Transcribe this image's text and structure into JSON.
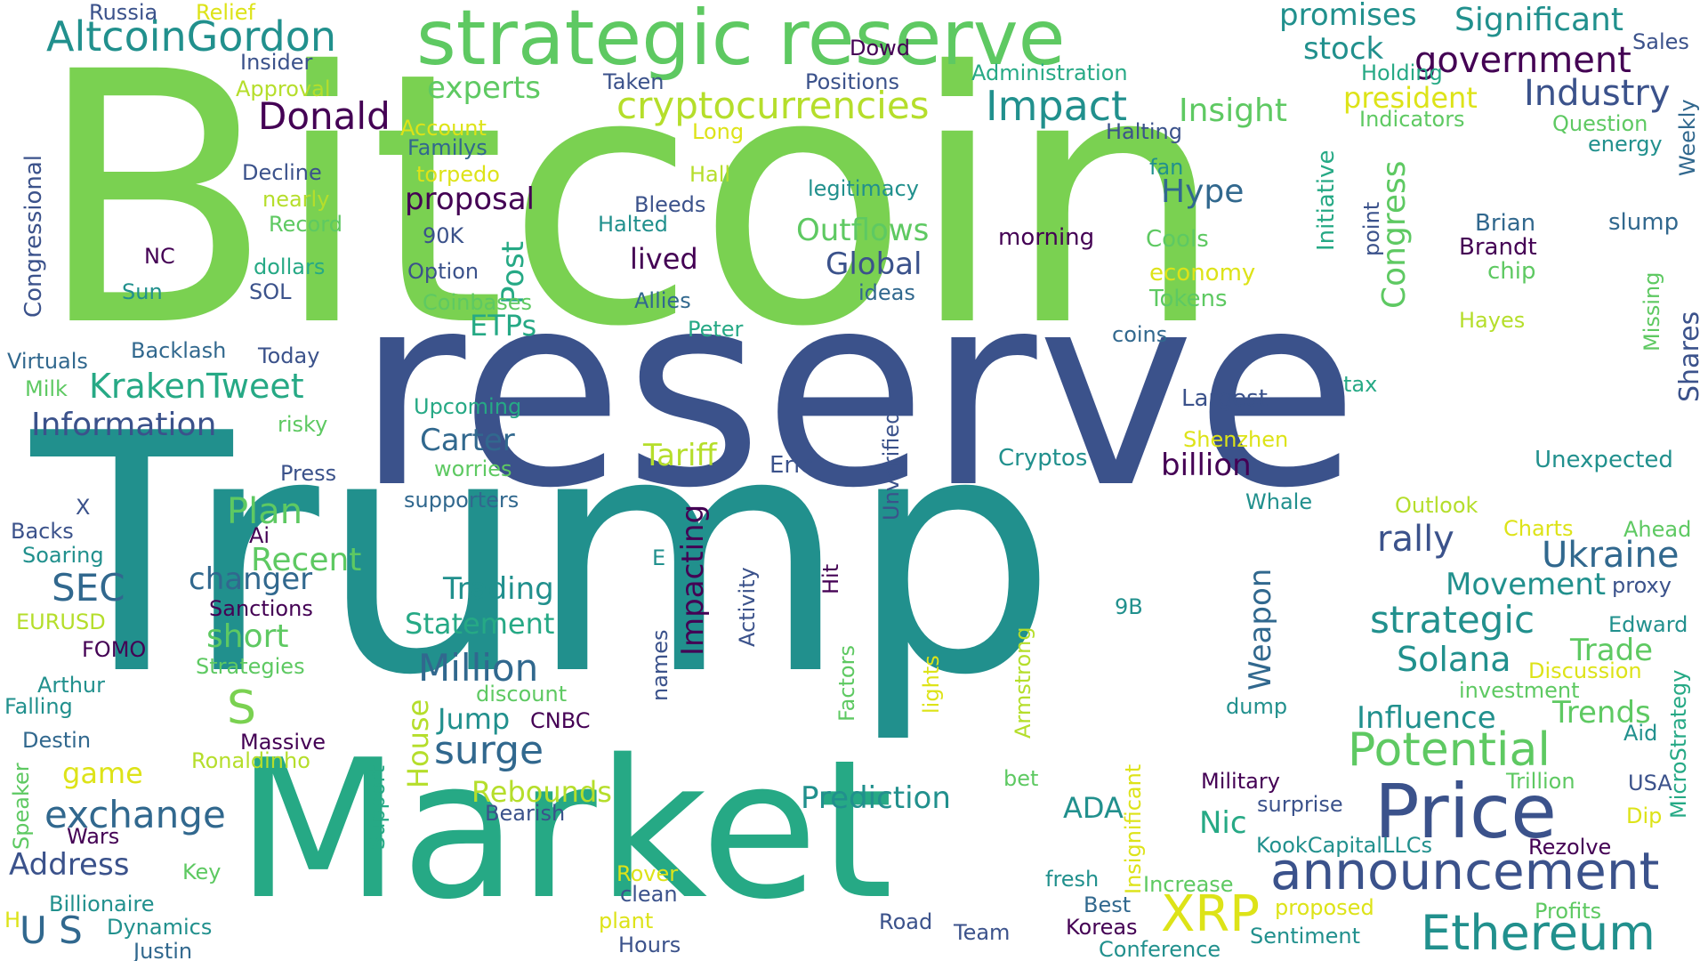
{
  "palette": {
    "dark_purple": "#440154",
    "indigo": "#3b528b",
    "teal_blue": "#31688e",
    "teal": "#21908d",
    "green_teal": "#26a985",
    "green": "#5ec962",
    "bright_green": "#7ad151",
    "yellow_green": "#b5de2b",
    "yellow": "#dde318"
  },
  "words": [
    {
      "text": "Bitcoin",
      "color": "#7ad151"
    },
    {
      "text": "reserve",
      "color": "#3b528b"
    },
    {
      "text": "Trump",
      "color": "#21908d"
    },
    {
      "text": "Market",
      "color": "#26a985"
    },
    {
      "text": "strategic reserve",
      "color": "#5ec962"
    },
    {
      "text": "Price",
      "color": "#3b528b"
    },
    {
      "text": "announcement",
      "color": "#3b528b"
    },
    {
      "text": "Ethereum",
      "color": "#21908d"
    },
    {
      "text": "Potential",
      "color": "#5ec962"
    },
    {
      "text": "XRP",
      "color": "#dde318"
    },
    {
      "text": "AltcoinGordon",
      "color": "#21908d"
    },
    {
      "text": "cryptocurrencies",
      "color": "#b5de2b"
    },
    {
      "text": "Impact",
      "color": "#21908d"
    },
    {
      "text": "Donald",
      "color": "#440154"
    },
    {
      "text": "government",
      "color": "#440154"
    },
    {
      "text": "Industry",
      "color": "#3b528b"
    },
    {
      "text": "Significant",
      "color": "#21908d"
    },
    {
      "text": "promises",
      "color": "#21908d"
    },
    {
      "text": "stock",
      "color": "#21908d"
    },
    {
      "text": "president",
      "color": "#dde318"
    },
    {
      "text": "experts",
      "color": "#5ec962"
    },
    {
      "text": "Insight",
      "color": "#5ec962"
    },
    {
      "text": "Ukraine",
      "color": "#31688e"
    },
    {
      "text": "strategic",
      "color": "#21908d"
    },
    {
      "text": "Solana",
      "color": "#21908d"
    },
    {
      "text": "Movement",
      "color": "#21908d"
    },
    {
      "text": "rally",
      "color": "#3b528b"
    },
    {
      "text": "Influence",
      "color": "#21908d"
    },
    {
      "text": "Trends",
      "color": "#5ec962"
    },
    {
      "text": "Trade",
      "color": "#5ec962"
    },
    {
      "text": "Plan",
      "color": "#5ec962"
    },
    {
      "text": "surge",
      "color": "#31688e"
    },
    {
      "text": "Million",
      "color": "#31688e"
    },
    {
      "text": "exchange",
      "color": "#31688e"
    },
    {
      "text": "KrakenTweet",
      "color": "#26a985"
    },
    {
      "text": "Information",
      "color": "#3b528b"
    },
    {
      "text": "SEC",
      "color": "#31688e"
    },
    {
      "text": "Recent",
      "color": "#5ec962"
    },
    {
      "text": "changer",
      "color": "#31688e"
    },
    {
      "text": "short",
      "color": "#5ec962"
    },
    {
      "text": "proposal",
      "color": "#440154"
    },
    {
      "text": "Outflows",
      "color": "#5ec962"
    },
    {
      "text": "Global",
      "color": "#3b528b"
    },
    {
      "text": "Hype",
      "color": "#31688e"
    },
    {
      "text": "billion",
      "color": "#440154"
    },
    {
      "text": "Tariff",
      "color": "#b5de2b"
    },
    {
      "text": "Carter",
      "color": "#31688e"
    },
    {
      "text": "Trading",
      "color": "#21908d"
    },
    {
      "text": "Statement",
      "color": "#26a985"
    },
    {
      "text": "Prediction",
      "color": "#21908d"
    },
    {
      "text": "Rebounds",
      "color": "#b5de2b"
    },
    {
      "text": "Jump",
      "color": "#21908d"
    },
    {
      "text": "lived",
      "color": "#440154"
    },
    {
      "text": "ETPs",
      "color": "#26a985"
    },
    {
      "text": "Post",
      "color": "#26a985"
    },
    {
      "text": "Congress",
      "color": "#5ec962"
    },
    {
      "text": "Weapon",
      "color": "#31688e"
    },
    {
      "text": "Impacting",
      "color": "#440154"
    },
    {
      "text": "House",
      "color": "#b5de2b"
    },
    {
      "text": "ADA",
      "color": "#21908d"
    },
    {
      "text": "Nic",
      "color": "#26a985"
    },
    {
      "text": "Address",
      "color": "#3b528b"
    },
    {
      "text": "game",
      "color": "#dde318"
    },
    {
      "text": "U S",
      "color": "#31688e"
    },
    {
      "text": "S",
      "color": "#7ad151"
    },
    {
      "text": "Shares",
      "color": "#3b528b"
    },
    {
      "text": "Russia",
      "color": "#3b528b"
    },
    {
      "text": "Relief",
      "color": "#dde318"
    },
    {
      "text": "Insider",
      "color": "#3b528b"
    },
    {
      "text": "Approval",
      "color": "#b5de2b"
    },
    {
      "text": "Account",
      "color": "#dde318"
    },
    {
      "text": "Dowd",
      "color": "#440154"
    },
    {
      "text": "Taken",
      "color": "#3b528b"
    },
    {
      "text": "Positions",
      "color": "#3b528b"
    },
    {
      "text": "Administration",
      "color": "#26a985"
    },
    {
      "text": "Holding",
      "color": "#26a985"
    },
    {
      "text": "Sales",
      "color": "#3b528b"
    },
    {
      "text": "Question",
      "color": "#5ec962"
    },
    {
      "text": "Indicators",
      "color": "#5ec962"
    },
    {
      "text": "energy",
      "color": "#21908d"
    },
    {
      "text": "Weekly",
      "color": "#31688e"
    },
    {
      "text": "Halting",
      "color": "#3b528b"
    },
    {
      "text": "Familys",
      "color": "#31688e"
    },
    {
      "text": "Long",
      "color": "#dde318"
    },
    {
      "text": "Decline",
      "color": "#3b528b"
    },
    {
      "text": "torpedo",
      "color": "#dde318"
    },
    {
      "text": "Hall",
      "color": "#b5de2b"
    },
    {
      "text": "legitimacy",
      "color": "#21908d"
    },
    {
      "text": "fan",
      "color": "#21908d"
    },
    {
      "text": "Initiative",
      "color": "#26a985"
    },
    {
      "text": "point",
      "color": "#3b528b"
    },
    {
      "text": "Congressional",
      "color": "#3b528b"
    },
    {
      "text": "nearly",
      "color": "#b5de2b"
    },
    {
      "text": "Record",
      "color": "#5ec962"
    },
    {
      "text": "Bleeds",
      "color": "#3b528b"
    },
    {
      "text": "Halted",
      "color": "#21908d"
    },
    {
      "text": "morning",
      "color": "#440154"
    },
    {
      "text": "Cools",
      "color": "#5ec962"
    },
    {
      "text": "economy",
      "color": "#dde318"
    },
    {
      "text": "Tokens",
      "color": "#5ec962"
    },
    {
      "text": "Brian",
      "color": "#31688e"
    },
    {
      "text": "Brandt",
      "color": "#440154"
    },
    {
      "text": "chip",
      "color": "#5ec962"
    },
    {
      "text": "slump",
      "color": "#31688e"
    },
    {
      "text": "Missing",
      "color": "#5ec962"
    },
    {
      "text": "Hayes",
      "color": "#b5de2b"
    },
    {
      "text": "NC",
      "color": "#440154"
    },
    {
      "text": "90K",
      "color": "#3b528b"
    },
    {
      "text": "dollars",
      "color": "#26a985"
    },
    {
      "text": "Option",
      "color": "#3b528b"
    },
    {
      "text": "Sun",
      "color": "#21908d"
    },
    {
      "text": "SOL",
      "color": "#3b528b"
    },
    {
      "text": "Coinbases",
      "color": "#5ec962"
    },
    {
      "text": "Allies",
      "color": "#31688e"
    },
    {
      "text": "ideas",
      "color": "#31688e"
    },
    {
      "text": "Peter",
      "color": "#26a985"
    },
    {
      "text": "coins",
      "color": "#31688e"
    },
    {
      "text": "Virtuals",
      "color": "#31688e"
    },
    {
      "text": "Backlash",
      "color": "#31688e"
    },
    {
      "text": "Today",
      "color": "#3b528b"
    },
    {
      "text": "Milk",
      "color": "#5ec962"
    },
    {
      "text": "risky",
      "color": "#5ec962"
    },
    {
      "text": "Upcoming",
      "color": "#26a985"
    },
    {
      "text": "Largest",
      "color": "#3b528b"
    },
    {
      "text": "tax",
      "color": "#26a985"
    },
    {
      "text": "Shenzhen",
      "color": "#dde318"
    },
    {
      "text": "Unexpected",
      "color": "#21908d"
    },
    {
      "text": "Cryptos",
      "color": "#21908d"
    },
    {
      "text": "worries",
      "color": "#5ec962"
    },
    {
      "text": "Press",
      "color": "#3b528b"
    },
    {
      "text": "Eric",
      "color": "#3b528b"
    },
    {
      "text": "Unverified",
      "color": "#3b528b"
    },
    {
      "text": "supporters",
      "color": "#31688e"
    },
    {
      "text": "Whale",
      "color": "#21908d"
    },
    {
      "text": "Outlook",
      "color": "#b5de2b"
    },
    {
      "text": "Charts",
      "color": "#dde318"
    },
    {
      "text": "Ahead",
      "color": "#5ec962"
    },
    {
      "text": "X",
      "color": "#3b528b"
    },
    {
      "text": "Backs",
      "color": "#3b528b"
    },
    {
      "text": "Ai",
      "color": "#440154"
    },
    {
      "text": "Soaring",
      "color": "#21908d"
    },
    {
      "text": "E",
      "color": "#21908d"
    },
    {
      "text": "Activity",
      "color": "#3b528b"
    },
    {
      "text": "Hit",
      "color": "#440154"
    },
    {
      "text": "proxy",
      "color": "#3b528b"
    },
    {
      "text": "Edward",
      "color": "#21908d"
    },
    {
      "text": "Sanctions",
      "color": "#440154"
    },
    {
      "text": "EURUSD",
      "color": "#b5de2b"
    },
    {
      "text": "FOMO",
      "color": "#440154"
    },
    {
      "text": "Strategies",
      "color": "#5ec962"
    },
    {
      "text": "names",
      "color": "#3b528b"
    },
    {
      "text": "Factors",
      "color": "#5ec962"
    },
    {
      "text": "lights",
      "color": "#dde318"
    },
    {
      "text": "Armstrong",
      "color": "#b5de2b"
    },
    {
      "text": "9B",
      "color": "#21908d"
    },
    {
      "text": "Discussion",
      "color": "#dde318"
    },
    {
      "text": "investment",
      "color": "#5ec962"
    },
    {
      "text": "Arthur",
      "color": "#21908d"
    },
    {
      "text": "Falling",
      "color": "#21908d"
    },
    {
      "text": "discount",
      "color": "#5ec962"
    },
    {
      "text": "CNBC",
      "color": "#440154"
    },
    {
      "text": "dump",
      "color": "#21908d"
    },
    {
      "text": "MicroStrategy",
      "color": "#26a985"
    },
    {
      "text": "Aid",
      "color": "#21908d"
    },
    {
      "text": "Destin",
      "color": "#31688e"
    },
    {
      "text": "Massive",
      "color": "#440154"
    },
    {
      "text": "Ronaldinho",
      "color": "#b5de2b"
    },
    {
      "text": "Insignificant",
      "color": "#dde318"
    },
    {
      "text": "bet",
      "color": "#5ec962"
    },
    {
      "text": "Military",
      "color": "#440154"
    },
    {
      "text": "Trillion",
      "color": "#5ec962"
    },
    {
      "text": "USA",
      "color": "#3b528b"
    },
    {
      "text": "Speaker",
      "color": "#5ec962"
    },
    {
      "text": "Support",
      "color": "#26a985"
    },
    {
      "text": "Bearish",
      "color": "#3b528b"
    },
    {
      "text": "surprise",
      "color": "#3b528b"
    },
    {
      "text": "Dip",
      "color": "#dde318"
    },
    {
      "text": "Wars",
      "color": "#440154"
    },
    {
      "text": "KookCapitalLLCs",
      "color": "#21908d"
    },
    {
      "text": "Rezolve",
      "color": "#440154"
    },
    {
      "text": "Key",
      "color": "#5ec962"
    },
    {
      "text": "Rover",
      "color": "#dde318"
    },
    {
      "text": "fresh",
      "color": "#21908d"
    },
    {
      "text": "Increase",
      "color": "#5ec962"
    },
    {
      "text": "Billionaire",
      "color": "#21908d"
    },
    {
      "text": "clean",
      "color": "#3b528b"
    },
    {
      "text": "Best",
      "color": "#31688e"
    },
    {
      "text": "proposed",
      "color": "#dde318"
    },
    {
      "text": "Profits",
      "color": "#5ec962"
    },
    {
      "text": "H",
      "color": "#dde318"
    },
    {
      "text": "Dynamics",
      "color": "#21908d"
    },
    {
      "text": "plant",
      "color": "#dde318"
    },
    {
      "text": "Road",
      "color": "#3b528b"
    },
    {
      "text": "Team",
      "color": "#3b528b"
    },
    {
      "text": "Koreas",
      "color": "#440154"
    },
    {
      "text": "Sentiment",
      "color": "#21908d"
    },
    {
      "text": "Justin",
      "color": "#31688e"
    },
    {
      "text": "Hours",
      "color": "#3b528b"
    },
    {
      "text": "Conference",
      "color": "#21908d"
    }
  ]
}
